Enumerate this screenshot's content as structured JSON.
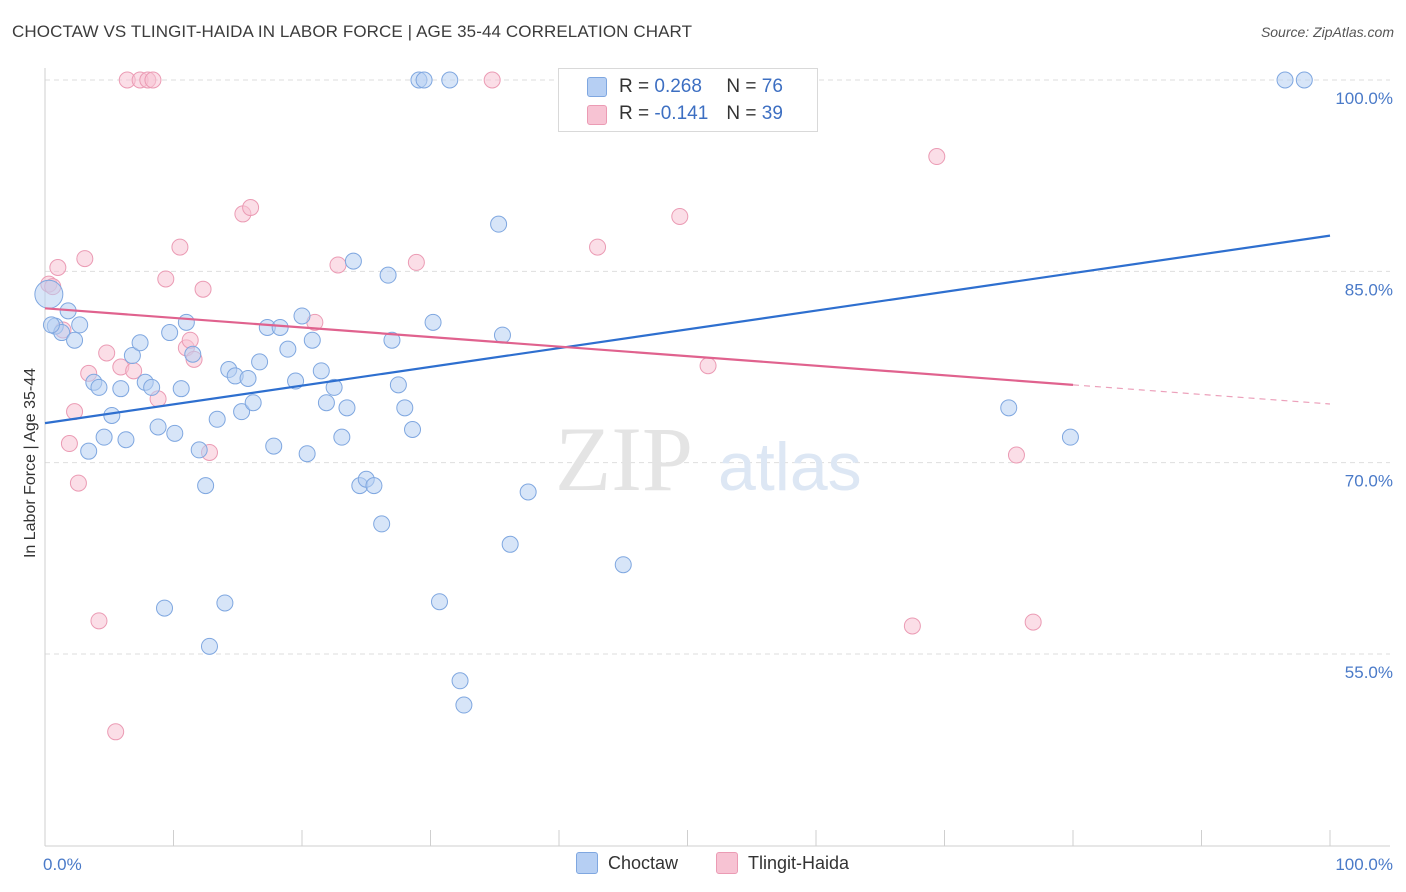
{
  "title": "CHOCTAW VS TLINGIT-HAIDA IN LABOR FORCE | AGE 35-44 CORRELATION CHART",
  "source": "Source: ZipAtlas.com",
  "watermark": {
    "zip": "ZIP",
    "atlas": "atlas"
  },
  "legend": {
    "r_label": "R =",
    "n_label": "N =",
    "rows": [
      {
        "r": "0.268",
        "n": "76"
      },
      {
        "r": "-0.141",
        "n": "39"
      }
    ]
  },
  "colors": {
    "choctaw_fill": "#b6cff3",
    "choctaw_stroke": "#7fa7e0",
    "choctaw_line": "#2e6fcf",
    "tlingit_fill": "#f7c3d3",
    "tlingit_stroke": "#eb9bb4",
    "tlingit_line": "#e0628e",
    "grid": "#dedede",
    "tick_text": "#4a7ac8"
  },
  "chart_data": {
    "type": "scatter",
    "title": "CHOCTAW VS TLINGIT-HAIDA IN LABOR FORCE | AGE 35-44 CORRELATION CHART",
    "xlabel": "",
    "ylabel": "In Labor Force | Age 35-44",
    "xlim": [
      0,
      100
    ],
    "ylim": [
      40,
      102
    ],
    "x_tick_labels": [
      "0.0%",
      "100.0%"
    ],
    "y_ticks": [
      55,
      70,
      85,
      100
    ],
    "y_tick_labels": [
      "55.0%",
      "70.0%",
      "85.0%",
      "100.0%"
    ],
    "grid": true,
    "legend_position": "bottom",
    "series": [
      {
        "name": "Choctaw",
        "r": 0.268,
        "n": 76,
        "trend": {
          "x": [
            0,
            100
          ],
          "y": [
            73.1,
            87.8
          ]
        },
        "points": [
          [
            0.3,
            83.2
          ],
          [
            0.8,
            80.7
          ],
          [
            1.3,
            80.2
          ],
          [
            1.8,
            81.9
          ],
          [
            2.3,
            79.6
          ],
          [
            2.7,
            80.8
          ],
          [
            3.4,
            70.9
          ],
          [
            3.8,
            76.3
          ],
          [
            4.2,
            75.9
          ],
          [
            4.6,
            72.0
          ],
          [
            5.2,
            73.7
          ],
          [
            5.9,
            75.8
          ],
          [
            6.3,
            71.8
          ],
          [
            6.8,
            78.4
          ],
          [
            7.4,
            79.4
          ],
          [
            7.8,
            76.3
          ],
          [
            8.3,
            75.9
          ],
          [
            8.8,
            72.8
          ],
          [
            9.3,
            58.6
          ],
          [
            9.7,
            80.2
          ],
          [
            10.1,
            72.3
          ],
          [
            10.6,
            75.8
          ],
          [
            11.0,
            81.0
          ],
          [
            11.5,
            78.5
          ],
          [
            12.0,
            71.0
          ],
          [
            12.5,
            68.2
          ],
          [
            12.8,
            55.6
          ],
          [
            13.4,
            73.4
          ],
          [
            14.0,
            59.0
          ],
          [
            14.3,
            77.3
          ],
          [
            14.8,
            76.8
          ],
          [
            15.3,
            74.0
          ],
          [
            15.8,
            76.6
          ],
          [
            16.2,
            74.7
          ],
          [
            16.7,
            77.9
          ],
          [
            17.3,
            80.6
          ],
          [
            17.8,
            71.3
          ],
          [
            18.3,
            80.6
          ],
          [
            18.9,
            78.9
          ],
          [
            19.5,
            76.4
          ],
          [
            20.0,
            81.5
          ],
          [
            20.4,
            70.7
          ],
          [
            20.8,
            79.6
          ],
          [
            21.5,
            77.2
          ],
          [
            21.9,
            74.7
          ],
          [
            22.5,
            75.9
          ],
          [
            23.1,
            72.0
          ],
          [
            23.5,
            74.3
          ],
          [
            24.0,
            85.8
          ],
          [
            24.5,
            68.2
          ],
          [
            25.0,
            68.7
          ],
          [
            25.6,
            68.2
          ],
          [
            26.2,
            65.2
          ],
          [
            26.7,
            84.7
          ],
          [
            27.0,
            79.6
          ],
          [
            27.5,
            76.1
          ],
          [
            28.0,
            74.3
          ],
          [
            28.6,
            72.6
          ],
          [
            29.1,
            100.0
          ],
          [
            29.5,
            100.0
          ],
          [
            30.2,
            81.0
          ],
          [
            30.7,
            59.1
          ],
          [
            31.5,
            100.0
          ],
          [
            32.3,
            52.9
          ],
          [
            32.6,
            51.0
          ],
          [
            35.3,
            88.7
          ],
          [
            35.6,
            80.0
          ],
          [
            36.2,
            63.6
          ],
          [
            37.6,
            67.7
          ],
          [
            45.0,
            62.0
          ],
          [
            46.5,
            100.0
          ],
          [
            75.0,
            74.3
          ],
          [
            79.8,
            72.0
          ],
          [
            96.5,
            100.0
          ],
          [
            98.0,
            100.0
          ],
          [
            0.5,
            80.8
          ]
        ]
      },
      {
        "name": "Tlingit-Haida",
        "r": -0.141,
        "n": 39,
        "trend": {
          "x": [
            0,
            80
          ],
          "y": [
            82.1,
            76.1
          ]
        },
        "trend_dashed": {
          "x": [
            80,
            100
          ],
          "y": [
            76.1,
            74.6
          ]
        },
        "points": [
          [
            0.3,
            84.0
          ],
          [
            0.6,
            83.8
          ],
          [
            1.0,
            85.3
          ],
          [
            1.4,
            80.4
          ],
          [
            1.9,
            71.5
          ],
          [
            2.3,
            74.0
          ],
          [
            2.6,
            68.4
          ],
          [
            3.1,
            86.0
          ],
          [
            3.4,
            77.0
          ],
          [
            4.2,
            57.6
          ],
          [
            4.8,
            78.6
          ],
          [
            5.5,
            48.9
          ],
          [
            5.9,
            77.5
          ],
          [
            6.4,
            100.0
          ],
          [
            6.9,
            77.2
          ],
          [
            7.4,
            100.0
          ],
          [
            8.0,
            100.0
          ],
          [
            8.4,
            100.0
          ],
          [
            8.8,
            75.0
          ],
          [
            9.4,
            84.4
          ],
          [
            10.5,
            86.9
          ],
          [
            11.0,
            79.0
          ],
          [
            11.3,
            79.6
          ],
          [
            11.6,
            78.1
          ],
          [
            12.3,
            83.6
          ],
          [
            12.8,
            70.8
          ],
          [
            15.4,
            89.5
          ],
          [
            16.0,
            90.0
          ],
          [
            21.0,
            81.0
          ],
          [
            22.8,
            85.5
          ],
          [
            28.9,
            85.7
          ],
          [
            34.8,
            100.0
          ],
          [
            43.0,
            86.9
          ],
          [
            51.6,
            77.6
          ],
          [
            49.4,
            89.3
          ],
          [
            67.5,
            57.2
          ],
          [
            69.4,
            94.0
          ],
          [
            75.6,
            70.6
          ],
          [
            76.9,
            57.5
          ]
        ]
      }
    ]
  }
}
